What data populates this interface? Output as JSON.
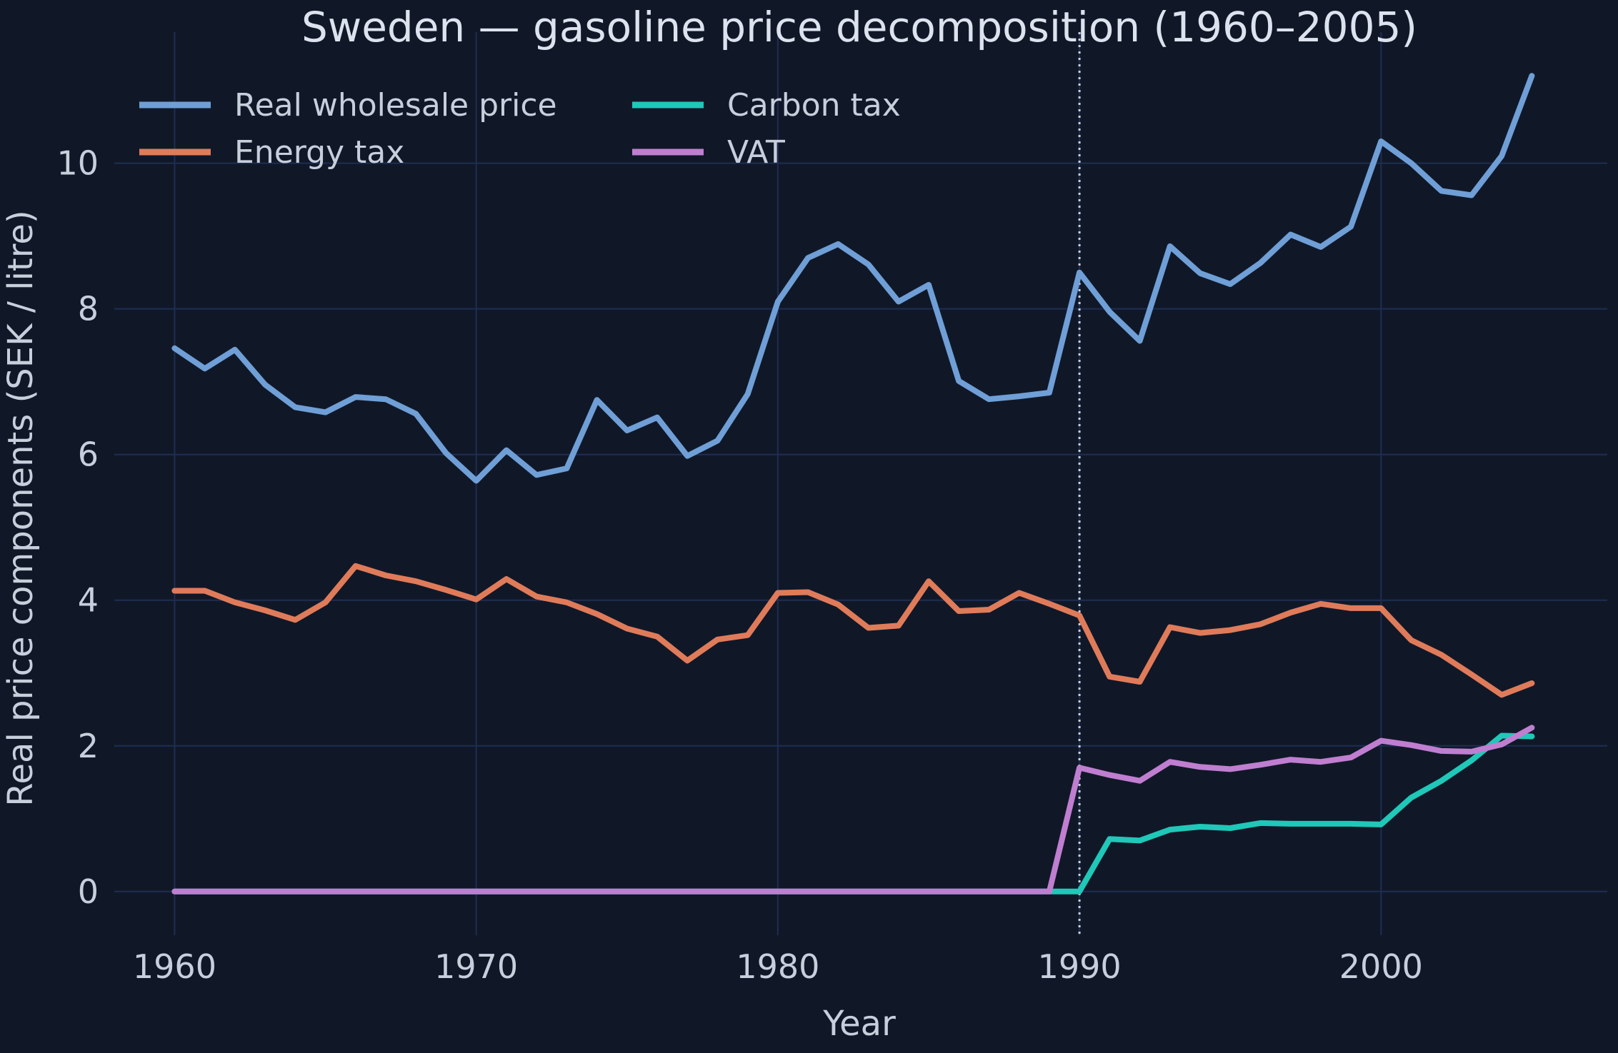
{
  "chart_data": {
    "type": "line",
    "title": "Sweden — gasoline price decomposition (1960–2005)",
    "xlabel": "Year",
    "ylabel": "Real price components (SEK / litre)",
    "xlim": [
      1958,
      2007.5
    ],
    "ylim": [
      -0.6,
      11.8
    ],
    "xticks": [
      1960,
      1970,
      1980,
      1990,
      2000
    ],
    "yticks": [
      0,
      2,
      4,
      6,
      8,
      10
    ],
    "grid": true,
    "legend": "top-left",
    "vline": {
      "x": 1990,
      "color": "#c8cfdc",
      "style": "dotted"
    },
    "x": [
      1960,
      1961,
      1962,
      1963,
      1964,
      1965,
      1966,
      1967,
      1968,
      1969,
      1970,
      1971,
      1972,
      1973,
      1974,
      1975,
      1976,
      1977,
      1978,
      1979,
      1980,
      1981,
      1982,
      1983,
      1984,
      1985,
      1986,
      1987,
      1988,
      1989,
      1990,
      1991,
      1992,
      1993,
      1994,
      1995,
      1996,
      1997,
      1998,
      1999,
      2000,
      2001,
      2002,
      2003,
      2004,
      2005
    ],
    "series": [
      {
        "name": "Real wholesale price",
        "color": "#6f9fd6",
        "values": [
          7.46,
          7.18,
          7.44,
          6.96,
          6.65,
          6.58,
          6.79,
          6.76,
          6.56,
          6.02,
          5.64,
          6.06,
          5.72,
          5.81,
          6.75,
          6.33,
          6.51,
          5.98,
          6.19,
          6.83,
          8.1,
          8.7,
          8.89,
          8.61,
          8.1,
          8.33,
          7.01,
          6.76,
          6.8,
          6.85,
          8.5,
          7.96,
          7.56,
          8.86,
          8.49,
          8.34,
          8.63,
          9.02,
          8.85,
          9.13,
          10.3,
          10.0,
          9.62,
          9.56,
          10.1,
          11.2
        ]
      },
      {
        "name": "Energy tax",
        "color": "#e07b5a",
        "values": [
          4.13,
          4.13,
          3.97,
          3.86,
          3.73,
          3.97,
          4.47,
          4.34,
          4.26,
          4.14,
          4.01,
          4.29,
          4.05,
          3.97,
          3.81,
          3.61,
          3.5,
          3.17,
          3.46,
          3.52,
          4.1,
          4.11,
          3.94,
          3.62,
          3.65,
          4.26,
          3.85,
          3.87,
          4.1,
          3.95,
          3.79,
          2.95,
          2.88,
          3.63,
          3.55,
          3.59,
          3.67,
          3.83,
          3.95,
          3.89,
          3.89,
          3.45,
          3.25,
          2.98,
          2.7,
          2.86
        ]
      },
      {
        "name": "Carbon tax",
        "color": "#1fc8b8",
        "values": [
          0,
          0,
          0,
          0,
          0,
          0,
          0,
          0,
          0,
          0,
          0,
          0,
          0,
          0,
          0,
          0,
          0,
          0,
          0,
          0,
          0,
          0,
          0,
          0,
          0,
          0,
          0,
          0,
          0,
          0,
          0,
          0.72,
          0.7,
          0.85,
          0.89,
          0.87,
          0.94,
          0.93,
          0.93,
          0.93,
          0.92,
          1.29,
          1.52,
          1.8,
          2.14,
          2.13
        ]
      },
      {
        "name": "VAT",
        "color": "#c07ed0",
        "values": [
          0,
          0,
          0,
          0,
          0,
          0,
          0,
          0,
          0,
          0,
          0,
          0,
          0,
          0,
          0,
          0,
          0,
          0,
          0,
          0,
          0,
          0,
          0,
          0,
          0,
          0,
          0,
          0,
          0,
          0,
          1.7,
          1.6,
          1.52,
          1.78,
          1.71,
          1.68,
          1.74,
          1.81,
          1.78,
          1.84,
          2.07,
          2.01,
          1.93,
          1.92,
          2.02,
          2.25
        ]
      }
    ]
  }
}
